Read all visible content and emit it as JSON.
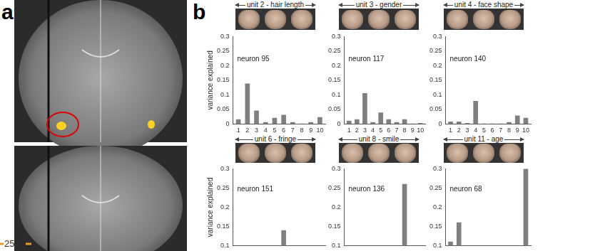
{
  "panel_labels": [
    "a",
    "b"
  ],
  "colorbar_tick": "25",
  "chart_data": [
    {
      "type": "bar",
      "title": "unit 2 - hair length",
      "annotation": "neuron 95",
      "y_label": "variance explained",
      "categories": [
        "1",
        "2",
        "3",
        "4",
        "5",
        "6",
        "7",
        "8",
        "9",
        "10"
      ],
      "values": [
        0.015,
        0.138,
        0.045,
        0.005,
        0.02,
        0.03,
        0.005,
        0,
        0.005,
        0.022
      ],
      "color": "#7f7f7f",
      "ylim": [
        0,
        0.3
      ],
      "yticks": [
        0,
        0.05,
        0.1,
        0.15,
        0.2,
        0.25,
        0.3
      ],
      "grid": false
    },
    {
      "type": "bar",
      "title": "unit 3 - gender",
      "annotation": "neuron 117",
      "categories": [
        "1",
        "2",
        "3",
        "4",
        "5",
        "6",
        "7",
        "8",
        "9",
        "10"
      ],
      "values": [
        0.01,
        0.015,
        0.105,
        0.005,
        0.038,
        0.015,
        0.005,
        0.015,
        0,
        0.002
      ],
      "color": "#7f7f7f",
      "ylim": [
        0,
        0.3
      ],
      "yticks": [
        0,
        0.05,
        0.1,
        0.15,
        0.2,
        0.25,
        0.3
      ],
      "grid": false
    },
    {
      "type": "bar",
      "title": "unit 4 - face shape",
      "annotation": "neuron 140",
      "categories": [
        "1",
        "2",
        "3",
        "4",
        "5",
        "6",
        "7",
        "8",
        "9",
        "10"
      ],
      "values": [
        0.007,
        0.007,
        0.002,
        0.078,
        0,
        0,
        0,
        0.005,
        0.028,
        0.02
      ],
      "color": "#7f7f7f",
      "ylim": [
        0,
        0.3
      ],
      "yticks": [
        0,
        0.05,
        0.1,
        0.15,
        0.2,
        0.25,
        0.3
      ],
      "grid": false
    },
    {
      "type": "bar",
      "title": "unit 6 - fringe",
      "annotation": "neuron 151",
      "y_label": "variance explained",
      "categories": [
        null,
        null,
        null,
        null,
        null,
        null,
        null,
        null,
        null,
        null
      ],
      "values": [
        null,
        null,
        null,
        null,
        null,
        0.14,
        null,
        null,
        null,
        null
      ],
      "color": "#7f7f7f",
      "ylim": [
        0.1,
        0.3
      ],
      "yticks": [
        0.1,
        0.15,
        0.2,
        0.25,
        0.3
      ],
      "grid": false,
      "tick_labels": "y"
    },
    {
      "type": "bar",
      "title": "unit 8 - smile",
      "annotation": "neuron 136",
      "categories": [
        null,
        null,
        null,
        null,
        null,
        null,
        null,
        null,
        null,
        null
      ],
      "values": [
        null,
        null,
        null,
        null,
        null,
        null,
        null,
        0.26,
        null,
        null
      ],
      "color": "#7f7f7f",
      "ylim": [
        0.1,
        0.3
      ],
      "yticks": [
        0.1,
        0.15,
        0.2,
        0.25,
        0.3
      ],
      "grid": false,
      "tick_labels": "y"
    },
    {
      "type": "bar",
      "title": "unit 11 - age",
      "annotation": "neuron 68",
      "categories": [
        null,
        null,
        null,
        null,
        null,
        null,
        null,
        null,
        null,
        null
      ],
      "values": [
        0.11,
        0.16,
        null,
        null,
        null,
        null,
        null,
        null,
        null,
        0.3
      ],
      "color": "#7f7f7f",
      "ylim": [
        0.1,
        0.3
      ],
      "yticks": [
        0.1,
        0.15,
        0.2,
        0.25,
        0.3
      ],
      "grid": false,
      "tick_labels": "y"
    }
  ]
}
